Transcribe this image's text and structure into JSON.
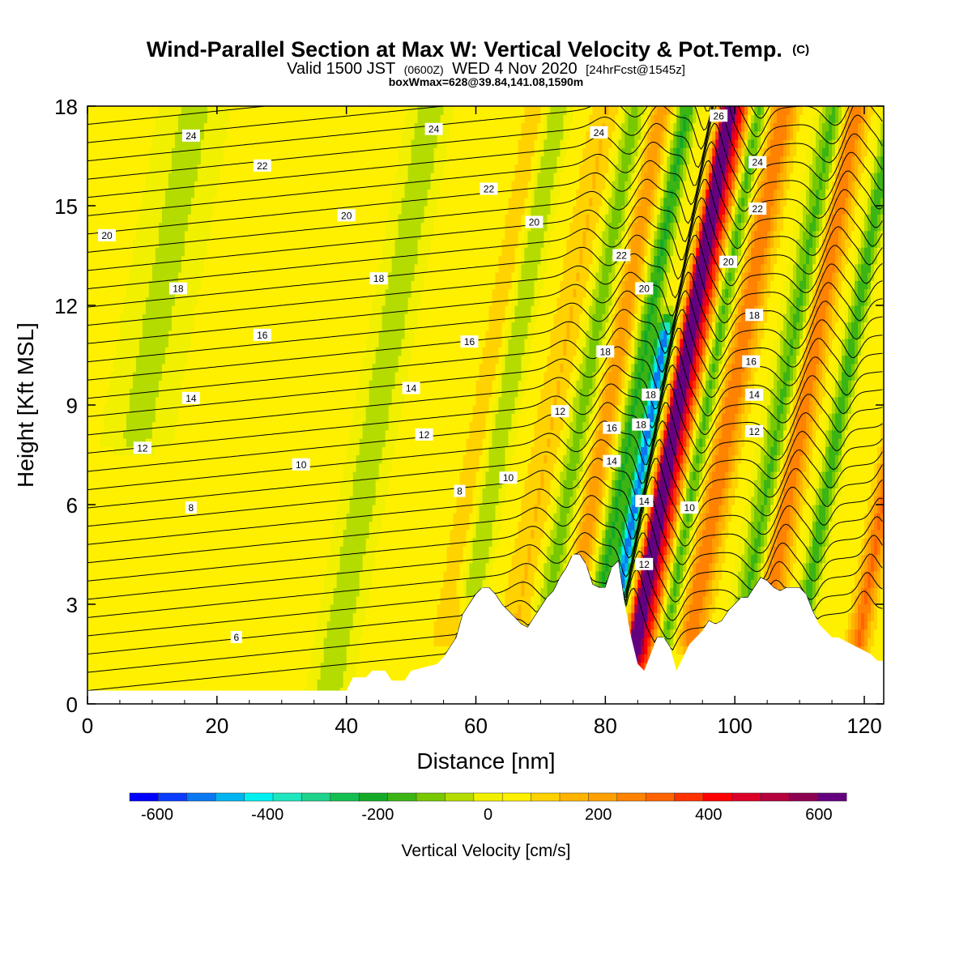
{
  "titles": {
    "main": "Wind-Parallel Section at Max W: Vertical Velocity & Pot.Temp.",
    "main_mark": "(C)",
    "valid_a": "Valid 1500 JST",
    "valid_b": "(0600Z)",
    "valid_c": "WED 4 Nov 2020",
    "valid_d": "[24hrFcst@1545z]",
    "box": "boxWmax=628@39.84,141.08,1590m"
  },
  "colors": {
    "background": "#ffffff",
    "terrain": "#ffffff",
    "contour": "#000000",
    "palette": [
      "#0000ff",
      "#0a3cff",
      "#0a78f0",
      "#00b4f0",
      "#00f0f0",
      "#1ee6be",
      "#1ed28c",
      "#14be50",
      "#14aa28",
      "#3cb414",
      "#78c800",
      "#b4dc00",
      "#f0f000",
      "#fff000",
      "#ffd200",
      "#ffb400",
      "#ffa000",
      "#ff8200",
      "#ff6400",
      "#ff3200",
      "#ff0000",
      "#dc0028",
      "#b4003c",
      "#8c0050",
      "#640080"
    ]
  },
  "chart_data": {
    "type": "heatmap",
    "xlabel": "Distance [nm]",
    "ylabel": "Height [Kft MSL]",
    "xlim": [
      0,
      123
    ],
    "ylim": [
      0,
      18
    ],
    "xticks": [
      0,
      20,
      40,
      60,
      80,
      100,
      120
    ],
    "yticks": [
      0,
      3,
      6,
      9,
      12,
      15,
      18
    ],
    "colorbar": {
      "label": "Vertical Velocity [cm/s]",
      "min": -650,
      "max": 650,
      "step": 50,
      "ticks": [
        -600,
        -400,
        -200,
        0,
        200,
        400,
        600
      ]
    },
    "terrain": [
      [
        0,
        0.4
      ],
      [
        40,
        0.4
      ],
      [
        41,
        0.8
      ],
      [
        43,
        0.8
      ],
      [
        44,
        1
      ],
      [
        46,
        1
      ],
      [
        47,
        0.7
      ],
      [
        49,
        0.7
      ],
      [
        50,
        1
      ],
      [
        54,
        1.2
      ],
      [
        55,
        1.4
      ],
      [
        56,
        1.7
      ],
      [
        57,
        2
      ],
      [
        58,
        2.7
      ],
      [
        59,
        3
      ],
      [
        60,
        3.3
      ],
      [
        61,
        3.5
      ],
      [
        62,
        3.5
      ],
      [
        63,
        3.3
      ],
      [
        64,
        3
      ],
      [
        65,
        2.8
      ],
      [
        66,
        2.6
      ],
      [
        67,
        2.4
      ],
      [
        68,
        2.3
      ],
      [
        69,
        2.6
      ],
      [
        70,
        2.9
      ],
      [
        71,
        3.2
      ],
      [
        72,
        3.4
      ],
      [
        73,
        3.8
      ],
      [
        74,
        4.1
      ],
      [
        75,
        4.5
      ],
      [
        76,
        4.5
      ],
      [
        77,
        4.2
      ],
      [
        78,
        3.6
      ],
      [
        79,
        3.5
      ],
      [
        80,
        3.5
      ],
      [
        81,
        4.1
      ],
      [
        82,
        4.3
      ],
      [
        83,
        3
      ],
      [
        84,
        2
      ],
      [
        85,
        1.2
      ],
      [
        86,
        1
      ],
      [
        87,
        1.5
      ],
      [
        88,
        2
      ],
      [
        89,
        2
      ],
      [
        90,
        1.7
      ],
      [
        91,
        1
      ],
      [
        92,
        1.4
      ],
      [
        93,
        1.8
      ],
      [
        94,
        2
      ],
      [
        95,
        2.2
      ],
      [
        96,
        2.5
      ],
      [
        97,
        2.4
      ],
      [
        98,
        2.5
      ],
      [
        99,
        2.8
      ],
      [
        100,
        3
      ],
      [
        101,
        3.2
      ],
      [
        102,
        3.2
      ],
      [
        103,
        3.5
      ],
      [
        104,
        3.8
      ],
      [
        105,
        3.7
      ],
      [
        106,
        3.5
      ],
      [
        107,
        3.4
      ],
      [
        108,
        3.5
      ],
      [
        110,
        3.5
      ],
      [
        111,
        3.3
      ],
      [
        112,
        2.8
      ],
      [
        113,
        2.4
      ],
      [
        114,
        2.2
      ],
      [
        115,
        2
      ],
      [
        116,
        2
      ],
      [
        117,
        1.9
      ],
      [
        118,
        1.8
      ],
      [
        119,
        1.7
      ],
      [
        120,
        1.6
      ],
      [
        121,
        1.5
      ],
      [
        122,
        1.3
      ],
      [
        123,
        1.3
      ]
    ],
    "updrafts": [
      {
        "x": 86.5,
        "w": 620,
        "width": 1.2,
        "zmin": 1.5,
        "zmax": 18
      },
      {
        "x": 88.5,
        "w": 300,
        "width": 1.8,
        "zmin": 1.0,
        "zmax": 18
      },
      {
        "x": 95,
        "w": 220,
        "width": 2.0,
        "zmin": 2.0,
        "zmax": 18
      },
      {
        "x": 106,
        "w": 240,
        "width": 2.0,
        "zmin": 3.0,
        "zmax": 18
      },
      {
        "x": 121,
        "w": 230,
        "width": 1.5,
        "zmin": 1.5,
        "zmax": 18
      },
      {
        "x": 76,
        "w": 160,
        "width": 1.8,
        "zmin": 4.0,
        "zmax": 18
      },
      {
        "x": 68,
        "w": 80,
        "width": 2.5,
        "zmin": 2.5,
        "zmax": 18
      },
      {
        "x": 57,
        "w": 60,
        "width": 2.0,
        "zmin": 2.0,
        "zmax": 18
      }
    ],
    "downdrafts": [
      {
        "x": 82.8,
        "w": -560,
        "width": 1.1,
        "zmin": 3.0,
        "zmax": 11
      },
      {
        "x": 80,
        "w": -230,
        "width": 1.6,
        "zmin": 3.5,
        "zmax": 18
      },
      {
        "x": 91,
        "w": -220,
        "width": 1.5,
        "zmin": 1.0,
        "zmax": 18
      },
      {
        "x": 103,
        "w": -200,
        "width": 2.2,
        "zmin": 3.0,
        "zmax": 18
      },
      {
        "x": 112,
        "w": -200,
        "width": 1.5,
        "zmin": 2.5,
        "zmax": 18
      },
      {
        "x": 72,
        "w": -150,
        "width": 2.2,
        "zmin": 3.0,
        "zmax": 18
      },
      {
        "x": 60,
        "w": -130,
        "width": 2.0,
        "zmin": 3.5,
        "zmax": 18
      },
      {
        "x": 40.5,
        "w": -110,
        "width": 3.0,
        "zmin": 0.4,
        "zmax": 18
      },
      {
        "x": 4,
        "w": -90,
        "width": 5.0,
        "zmin": 8,
        "zmax": 18
      }
    ],
    "theta_contours": [
      6,
      8,
      10,
      12,
      14,
      16,
      18,
      20,
      22,
      24,
      26
    ],
    "contour_labels": [
      {
        "x": 23,
        "z": 2.0,
        "text": "6"
      },
      {
        "x": 16,
        "z": 5.9,
        "text": "8"
      },
      {
        "x": 57.5,
        "z": 6.4,
        "text": "8"
      },
      {
        "x": 33,
        "z": 7.2,
        "text": "10"
      },
      {
        "x": 65,
        "z": 6.8,
        "text": "10"
      },
      {
        "x": 93,
        "z": 5.9,
        "text": "10"
      },
      {
        "x": 8.5,
        "z": 7.7,
        "text": "12"
      },
      {
        "x": 52,
        "z": 8.1,
        "text": "12"
      },
      {
        "x": 73,
        "z": 8.8,
        "text": "12"
      },
      {
        "x": 86,
        "z": 4.2,
        "text": "12"
      },
      {
        "x": 103,
        "z": 8.2,
        "text": "12"
      },
      {
        "x": 16,
        "z": 9.2,
        "text": "14"
      },
      {
        "x": 50,
        "z": 9.5,
        "text": "14"
      },
      {
        "x": 81,
        "z": 7.3,
        "text": "14"
      },
      {
        "x": 86,
        "z": 6.1,
        "text": "14"
      },
      {
        "x": 103,
        "z": 9.3,
        "text": "14"
      },
      {
        "x": 27,
        "z": 11.1,
        "text": "16"
      },
      {
        "x": 59,
        "z": 10.9,
        "text": "16"
      },
      {
        "x": 81,
        "z": 8.3,
        "text": "16"
      },
      {
        "x": 102.5,
        "z": 10.3,
        "text": "16"
      },
      {
        "x": 14,
        "z": 12.5,
        "text": "18"
      },
      {
        "x": 45,
        "z": 12.8,
        "text": "18"
      },
      {
        "x": 80,
        "z": 10.6,
        "text": "18"
      },
      {
        "x": 85.5,
        "z": 8.4,
        "text": "18"
      },
      {
        "x": 87,
        "z": 9.3,
        "text": "18"
      },
      {
        "x": 103,
        "z": 11.7,
        "text": "18"
      },
      {
        "x": 3,
        "z": 14.1,
        "text": "20"
      },
      {
        "x": 40,
        "z": 14.7,
        "text": "20"
      },
      {
        "x": 69,
        "z": 14.5,
        "text": "20"
      },
      {
        "x": 86,
        "z": 12.5,
        "text": "20"
      },
      {
        "x": 99,
        "z": 13.3,
        "text": "20"
      },
      {
        "x": 27,
        "z": 16.2,
        "text": "22"
      },
      {
        "x": 62,
        "z": 15.5,
        "text": "22"
      },
      {
        "x": 82.5,
        "z": 13.5,
        "text": "22"
      },
      {
        "x": 103.5,
        "z": 14.9,
        "text": "22"
      },
      {
        "x": 16,
        "z": 17.1,
        "text": "24"
      },
      {
        "x": 53.5,
        "z": 17.3,
        "text": "24"
      },
      {
        "x": 79,
        "z": 17.2,
        "text": "24"
      },
      {
        "x": 103.5,
        "z": 16.3,
        "text": "24"
      },
      {
        "x": 97.5,
        "z": 17.7,
        "text": "26"
      }
    ]
  }
}
